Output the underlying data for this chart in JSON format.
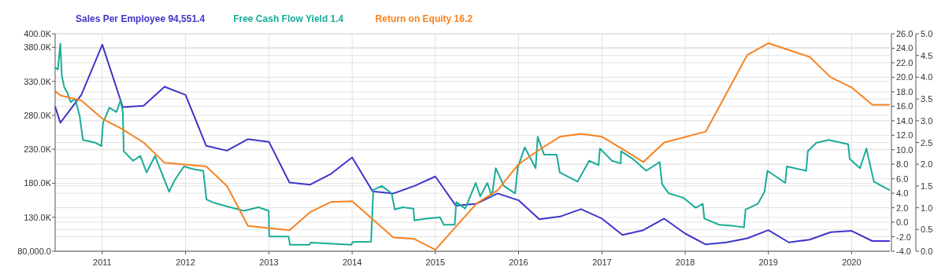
{
  "chart_data": {
    "type": "line",
    "xlim": [
      "2010-06-08",
      "2020-06-17"
    ],
    "xticks": [
      "2011",
      "2012",
      "2013",
      "2014",
      "2015",
      "2016",
      "2017",
      "2018",
      "2019",
      "2020"
    ],
    "ylim": [
      80000,
      400000
    ],
    "yticks": [
      {
        "value": 80000,
        "label": "80,000.0"
      },
      {
        "value": 130000,
        "label": "130.0K"
      },
      {
        "value": 180000,
        "label": "180.0K"
      },
      {
        "value": 230000,
        "label": "230.0K"
      },
      {
        "value": 280000,
        "label": "280.0K"
      },
      {
        "value": 330000,
        "label": "330.0K"
      },
      {
        "value": 380000,
        "label": "380.0K"
      },
      {
        "value": 400000,
        "label": "400.0K"
      }
    ],
    "y2lim": [
      -4,
      26
    ],
    "y2ticks": [
      {
        "value": -4,
        "label": "-4.0"
      },
      {
        "value": -2,
        "label": "-2.0"
      },
      {
        "value": 0,
        "label": "0.0"
      },
      {
        "value": 2,
        "label": "2.0"
      },
      {
        "value": 4,
        "label": "4.0"
      },
      {
        "value": 6,
        "label": "6.0"
      },
      {
        "value": 8,
        "label": "8.0"
      },
      {
        "value": 10,
        "label": "10.0"
      },
      {
        "value": 12,
        "label": "12.0"
      },
      {
        "value": 14,
        "label": "14.0"
      },
      {
        "value": 16,
        "label": "16.0"
      },
      {
        "value": 18,
        "label": "18.0"
      },
      {
        "value": 20,
        "label": "20.0"
      },
      {
        "value": 22,
        "label": "22.0"
      },
      {
        "value": 24,
        "label": "24.0"
      },
      {
        "value": 26,
        "label": "26.0"
      }
    ],
    "y3lim": [
      0,
      5
    ],
    "y3ticks": [
      {
        "value": 0,
        "label": "0.0"
      },
      {
        "value": 0.5,
        "label": "0.5"
      },
      {
        "value": 1,
        "label": "1.0"
      },
      {
        "value": 1.5,
        "label": "1.5"
      },
      {
        "value": 2,
        "label": "2.0"
      },
      {
        "value": 2.5,
        "label": "2.5"
      },
      {
        "value": 3,
        "label": "3.0"
      },
      {
        "value": 3.5,
        "label": "3.5"
      },
      {
        "value": 4,
        "label": "4.0"
      },
      {
        "value": 4.5,
        "label": "4.5"
      },
      {
        "value": 5,
        "label": "5.0"
      }
    ],
    "grid": true,
    "legend": "top left",
    "marker": "none",
    "line_style": "solid",
    "series": [
      {
        "name": "Sales Per Employee 94,551.4",
        "color": "#3f35c9",
        "x": [
          "2010-06-08",
          "2010-07-01",
          "2010-10-01",
          "2011-01-01",
          "2011-04-01",
          "2011-07-01",
          "2011-10-01",
          "2012-01-01",
          "2012-04-01",
          "2012-07-01",
          "2012-10-01",
          "2013-01-01",
          "2013-04-01",
          "2013-07-01",
          "2013-10-01",
          "2014-01-01",
          "2014-04-01",
          "2014-07-01",
          "2014-10-01",
          "2015-01-01",
          "2015-04-01",
          "2015-07-01",
          "2015-10-01",
          "2016-01-01",
          "2016-04-01",
          "2016-07-01",
          "2016-10-01",
          "2017-01-01",
          "2017-04-01",
          "2017-07-01",
          "2017-10-01",
          "2018-01-01",
          "2018-04-01",
          "2018-07-01",
          "2018-10-01",
          "2019-01-01",
          "2019-04-01",
          "2019-07-01",
          "2019-10-01",
          "2020-01-01",
          "2020-04-01",
          "2020-06-17"
        ],
        "values": [
          293000,
          269000,
          310000,
          384000,
          292000,
          294000,
          322000,
          310000,
          235000,
          228000,
          245000,
          241000,
          181000,
          178000,
          194000,
          218000,
          168000,
          165000,
          176000,
          190000,
          147000,
          150000,
          165000,
          155000,
          127000,
          131000,
          142000,
          128000,
          104000,
          111000,
          128000,
          106000,
          90000,
          93000,
          99000,
          111000,
          93000,
          97000,
          108000,
          110000,
          95000,
          95000
        ]
      },
      {
        "name": "Free Cash Flow Yield 1.4",
        "color": "#1aab98",
        "axis": "y3",
        "x": [
          "2010-06-08",
          "2010-06-20",
          "2010-07-01",
          "2010-07-07",
          "2010-07-18",
          "2010-08-01",
          "2010-08-15",
          "2010-09-04",
          "2010-09-24",
          "2010-10-08",
          "2010-12-04",
          "2010-12-28",
          "2011-01-04",
          "2011-02-01",
          "2011-03-04",
          "2011-03-22",
          "2011-04-01",
          "2011-04-05",
          "2011-05-16",
          "2011-06-17",
          "2011-07-14",
          "2011-08-20",
          "2011-10-21",
          "2011-11-14",
          "2011-12-25",
          "2012-02-02",
          "2012-03-19",
          "2012-04-02",
          "2012-05-02",
          "2012-07-09",
          "2012-09-13",
          "2012-11-16",
          "2012-12-31",
          "2013-01-02",
          "2013-03-28",
          "2013-04-03",
          "2013-06-27",
          "2013-07-04",
          "2013-12-28",
          "2014-01-04",
          "2014-03-25",
          "2014-04-04",
          "2014-05-11",
          "2014-06-23",
          "2014-07-07",
          "2014-08-10",
          "2014-09-27",
          "2014-10-01",
          "2014-11-22",
          "2015-01-21",
          "2015-02-07",
          "2015-03-27",
          "2015-04-03",
          "2015-05-12",
          "2015-06-27",
          "2015-07-17",
          "2015-08-17",
          "2015-09-06",
          "2015-09-23",
          "2015-10-29",
          "2015-12-17",
          "2015-12-28",
          "2016-01-28",
          "2016-03-16",
          "2016-03-25",
          "2016-04-22",
          "2016-06-16",
          "2016-06-30",
          "2016-09-16",
          "2016-11-06",
          "2016-12-17",
          "2016-12-23",
          "2017-02-14",
          "2017-03-24",
          "2017-03-26",
          "2017-05-17",
          "2017-07-14",
          "2017-09-11",
          "2017-09-22",
          "2017-10-21",
          "2017-12-24",
          "2018-02-16",
          "2018-03-19",
          "2018-03-26",
          "2018-05-30",
          "2018-08-05",
          "2018-09-16",
          "2018-09-23",
          "2018-11-16",
          "2018-12-15",
          "2018-12-28",
          "2019-03-16",
          "2019-03-23",
          "2019-06-16",
          "2019-06-23",
          "2019-07-30",
          "2019-09-23",
          "2019-12-17",
          "2019-12-24",
          "2020-02-07",
          "2020-03-06",
          "2020-04-08",
          "2020-06-17"
        ],
        "values": [
          4.22,
          4.18,
          4.77,
          4.05,
          3.77,
          3.64,
          3.43,
          3.5,
          3.1,
          2.56,
          2.49,
          2.42,
          2.95,
          3.3,
          3.2,
          3.47,
          3.2,
          2.3,
          2.08,
          2.19,
          1.81,
          2.19,
          1.37,
          1.63,
          1.95,
          1.89,
          1.85,
          1.19,
          1.12,
          1.02,
          0.93,
          1.01,
          0.93,
          0.34,
          0.34,
          0.15,
          0.15,
          0.2,
          0.15,
          0.21,
          0.22,
          1.41,
          1.5,
          1.33,
          0.96,
          1.01,
          0.98,
          0.71,
          0.75,
          0.78,
          0.61,
          0.61,
          1.13,
          0.98,
          1.57,
          1.26,
          1.57,
          1.26,
          1.91,
          1.5,
          1.33,
          1.91,
          2.39,
          1.91,
          2.63,
          2.22,
          2.22,
          1.81,
          1.6,
          2.08,
          1.98,
          2.36,
          2.08,
          2.02,
          2.3,
          2.12,
          1.85,
          2.05,
          1.54,
          1.33,
          1.23,
          1.0,
          1.09,
          0.75,
          0.61,
          0.58,
          0.55,
          0.96,
          1.09,
          1.37,
          1.85,
          1.57,
          1.95,
          1.85,
          2.3,
          2.49,
          2.56,
          2.46,
          2.12,
          1.91,
          2.36,
          1.6,
          1.4
        ]
      },
      {
        "name": "Return on Equity 16.2",
        "color": "#f7821f",
        "axis": "y2",
        "x": [
          "2010-06-08",
          "2010-07-01",
          "2010-10-01",
          "2011-01-01",
          "2011-04-01",
          "2011-07-01",
          "2011-10-01",
          "2012-04-01",
          "2012-07-01",
          "2012-10-01",
          "2013-04-01",
          "2013-07-01",
          "2013-10-01",
          "2014-01-01",
          "2014-07-01",
          "2014-10-01",
          "2015-01-01",
          "2015-07-01",
          "2015-10-01",
          "2016-01-01",
          "2016-04-01",
          "2016-07-01",
          "2016-10-01",
          "2017-01-01",
          "2017-04-01",
          "2017-07-01",
          "2017-10-01",
          "2018-04-01",
          "2018-10-01",
          "2019-01-01",
          "2019-07-01",
          "2019-10-01",
          "2020-01-01",
          "2020-04-01",
          "2020-06-17"
        ],
        "values": [
          18.1,
          17.5,
          16.8,
          14.3,
          12.8,
          11.0,
          8.2,
          7.7,
          5.0,
          -0.5,
          -1.1,
          1.4,
          2.8,
          2.9,
          -2.1,
          -2.3,
          -3.8,
          2.6,
          4.4,
          8.0,
          10.0,
          11.8,
          12.2,
          11.8,
          10.1,
          8.3,
          11.0,
          12.5,
          23.1,
          24.7,
          22.8,
          20.0,
          18.6,
          16.2,
          16.2
        ]
      }
    ]
  }
}
